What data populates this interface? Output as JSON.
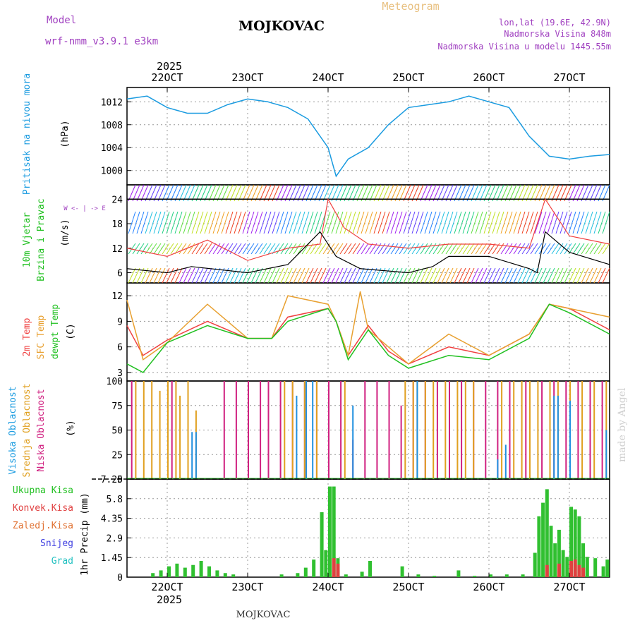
{
  "header": {
    "model_label": "Model",
    "model_name": "wrf-nmm_v3.9.1  e3km",
    "station": "MOJKOVAC",
    "chart_type": "Meteogram",
    "lonlat": "lon,lat (19.6E, 42.9N)",
    "elevation": "Nadmorska Visina 848m",
    "model_elevation": "Nadmorska Visina u modelu 1445.55m",
    "footer_station": "MOJKOVAC",
    "watermark": "made by Angel",
    "year": "2025"
  },
  "colors": {
    "pressure": "#1a9be0",
    "t2m": "#f04040",
    "tsfc": "#e8a030",
    "dewpt": "#20c020",
    "gust": "#000000",
    "precip_total": "#30c030",
    "precip_conv": "#e04040",
    "purple": "#a040c0",
    "low_cloud": "#d02080",
    "mid_cloud": "#e0a020",
    "high_cloud": "#2090e0"
  },
  "chart_data": [
    {
      "type": "line",
      "panel": "pressure",
      "ylabel": "Pritisak na nivou mora",
      "unit": "(hPa)",
      "yticks": [
        "1012",
        "1008",
        "1004",
        "1000"
      ],
      "ytick_values": [
        1012,
        1008,
        1004,
        1000
      ],
      "ylim": [
        997.5,
        1014.5
      ],
      "x_days": [
        21.5,
        21.75,
        22.0,
        22.25,
        22.5,
        22.75,
        23.0,
        23.25,
        23.5,
        23.75,
        24.0,
        24.1,
        24.25,
        24.5,
        24.75,
        25.0,
        25.25,
        25.5,
        25.75,
        26.0,
        26.25,
        26.5,
        26.75,
        27.0,
        27.25,
        27.5
      ],
      "values": [
        1012.5,
        1013.0,
        1011.0,
        1010.0,
        1010.0,
        1011.5,
        1012.5,
        1012.0,
        1011.0,
        1009.0,
        1004.0,
        999.0,
        1002.0,
        1004.0,
        1008.0,
        1011.0,
        1011.5,
        1012.0,
        1013.0,
        1012.0,
        1011.0,
        1006.0,
        1002.5,
        1002.0,
        1002.5,
        1002.8
      ]
    },
    {
      "type": "line",
      "panel": "wind",
      "ylabel_1": "10m Vjetar",
      "ylabel_2": "Brzina i Pravac",
      "unit": "(m/s)",
      "legend_symbols": "W <- | -> E",
      "yticks": [
        "24",
        "18",
        "12",
        "6"
      ],
      "ytick_values": [
        24,
        18,
        12,
        6
      ],
      "ylim": [
        3.5,
        27.5
      ],
      "series": [
        {
          "name": "wind speed",
          "x_days": [
            21.5,
            22.0,
            22.5,
            23.0,
            23.5,
            23.9,
            24.0,
            24.2,
            24.5,
            25.0,
            25.5,
            26.0,
            26.5,
            26.7,
            27.0,
            27.5
          ],
          "values": [
            12.0,
            10.0,
            14.0,
            9.0,
            12.0,
            13.0,
            24.0,
            17.0,
            13.0,
            12.0,
            13.0,
            13.0,
            12.0,
            24.0,
            15.0,
            13.0
          ]
        },
        {
          "name": "gust",
          "x_days": [
            21.5,
            22.0,
            22.3,
            23.0,
            23.5,
            23.9,
            24.1,
            24.4,
            25.0,
            25.3,
            25.5,
            26.0,
            26.5,
            26.6,
            26.7,
            27.0,
            27.5
          ],
          "values": [
            7.0,
            6.0,
            7.5,
            6.0,
            8.0,
            16.0,
            10.0,
            7.0,
            6.0,
            7.5,
            10.0,
            10.0,
            7.0,
            6.0,
            16.0,
            11.0,
            8.0
          ]
        }
      ]
    },
    {
      "type": "line",
      "panel": "temperature",
      "ylabel_1": "2m Temp",
      "ylabel_2": "SFC Temp",
      "ylabel_3": "dewpt Temp",
      "unit": "(C)",
      "yticks": [
        "12",
        "9",
        "6",
        "3"
      ],
      "ytick_values": [
        12,
        9,
        6,
        3
      ],
      "ylim": [
        2,
        13.5
      ],
      "series": [
        {
          "name": "2m Temp",
          "x_days": [
            21.5,
            21.7,
            22.0,
            22.5,
            23.0,
            23.3,
            23.5,
            24.0,
            24.1,
            24.25,
            24.5,
            24.75,
            25.0,
            25.5,
            26.0,
            26.5,
            26.75,
            27.0,
            27.5
          ],
          "values": [
            8.5,
            5.0,
            6.8,
            9.0,
            7.0,
            7.0,
            9.5,
            10.5,
            9.0,
            5.0,
            8.5,
            5.5,
            4.0,
            6.0,
            5.0,
            7.5,
            11.0,
            10.5,
            8.0
          ]
        },
        {
          "name": "SFC Temp",
          "x_days": [
            21.5,
            21.7,
            22.0,
            22.5,
            23.0,
            23.3,
            23.5,
            24.0,
            24.1,
            24.25,
            24.4,
            24.5,
            24.75,
            25.0,
            25.5,
            26.0,
            26.5,
            26.75,
            27.0,
            27.5
          ],
          "values": [
            11.5,
            4.5,
            6.5,
            11.0,
            7.0,
            7.0,
            12.0,
            11.0,
            9.0,
            5.0,
            12.5,
            8.0,
            6.0,
            4.0,
            7.5,
            5.0,
            7.5,
            11.0,
            10.5,
            9.5
          ]
        },
        {
          "name": "dewpt Temp",
          "x_days": [
            21.5,
            21.7,
            22.0,
            22.5,
            23.0,
            23.3,
            23.5,
            24.0,
            24.1,
            24.25,
            24.5,
            24.75,
            25.0,
            25.5,
            26.0,
            26.5,
            26.75,
            27.0,
            27.5
          ],
          "values": [
            4.0,
            3.0,
            6.5,
            8.5,
            7.0,
            7.0,
            9.0,
            10.5,
            9.0,
            4.5,
            8.0,
            5.0,
            3.5,
            5.0,
            4.5,
            7.0,
            11.0,
            10.0,
            7.5
          ]
        }
      ]
    },
    {
      "type": "bar",
      "panel": "cloud",
      "ylabel_1": "Visoka Oblacnost",
      "ylabel_2": "Srednja Oblacnost",
      "ylabel_3": "Niska Oblacnost",
      "unit": "(%)",
      "yticks": [
        "100",
        "75",
        "50",
        "25",
        "0"
      ],
      "ytick_values": [
        100,
        75,
        50,
        25,
        0
      ],
      "ylim": [
        0,
        100
      ],
      "series": [
        {
          "name": "Niska Oblacnost",
          "x_days": [
            21.55,
            22.05,
            22.7,
            22.85,
            23.0,
            23.15,
            23.25,
            23.4,
            23.55,
            23.7,
            23.85,
            24.0,
            24.15,
            24.3,
            24.45,
            24.6,
            24.75,
            24.9,
            25.05,
            25.2,
            25.35,
            25.5,
            25.65,
            25.8,
            25.95,
            26.1,
            26.25,
            26.45,
            26.65,
            26.8,
            26.95,
            27.1,
            27.25,
            27.4
          ],
          "values": [
            100,
            100,
            100,
            100,
            100,
            100,
            100,
            100,
            100,
            100,
            100,
            100,
            100,
            40,
            100,
            100,
            100,
            75,
            100,
            100,
            100,
            100,
            100,
            100,
            100,
            100,
            100,
            100,
            100,
            100,
            100,
            100,
            100,
            100
          ]
        },
        {
          "name": "Srednja Oblacnost",
          "x_days": [
            21.6,
            21.7,
            21.8,
            21.9,
            22.0,
            22.1,
            22.15,
            22.25,
            22.35,
            23.45,
            23.55,
            23.7,
            23.85,
            24.2,
            24.95,
            25.05,
            25.1,
            25.2,
            25.3,
            25.45,
            25.6,
            25.7,
            25.8,
            26.15,
            26.3,
            26.4,
            26.5,
            26.6,
            26.75,
            26.85,
            27.0,
            27.15,
            27.3,
            27.45
          ],
          "values": [
            100,
            100,
            100,
            90,
            100,
            100,
            85,
            100,
            70,
            100,
            100,
            100,
            100,
            100,
            100,
            100,
            100,
            100,
            100,
            100,
            100,
            100,
            100,
            100,
            100,
            100,
            100,
            100,
            100,
            100,
            100,
            100,
            100,
            100
          ]
        },
        {
          "name": "Visoka Oblacnost",
          "x_days": [
            22.3,
            22.35,
            23.6,
            23.72,
            23.8,
            24.3,
            25.1,
            26.1,
            26.2,
            26.8,
            26.85,
            27.0,
            27.45
          ],
          "values": [
            48,
            48,
            85,
            100,
            100,
            75,
            100,
            20,
            35,
            85,
            85,
            80,
            50
          ]
        }
      ]
    },
    {
      "type": "bar",
      "panel": "precipitation",
      "legend": [
        "Ukupna  Kisa",
        "Konvek.Kisa",
        "Zaledj.Kisa",
        "Snijeg",
        "Grad"
      ],
      "ylabel": "1hr Precip (mm)",
      "yticks": [
        "7.25",
        "5.8",
        "4.35",
        "2.9",
        "1.45",
        "0"
      ],
      "ytick_values": [
        7.25,
        5.8,
        4.35,
        2.9,
        1.45,
        0
      ],
      "ylim": [
        0,
        7.25
      ],
      "series": [
        {
          "name": "Ukupna Kisa",
          "x_days": [
            21.8,
            21.9,
            22.0,
            22.1,
            22.2,
            22.3,
            22.4,
            22.5,
            22.6,
            22.7,
            22.8,
            23.4,
            23.6,
            23.7,
            23.8,
            23.9,
            23.95,
            24.0,
            24.05,
            24.1,
            24.2,
            24.4,
            24.5,
            24.9,
            25.1,
            25.3,
            25.6,
            25.8,
            26.0,
            26.2,
            26.4,
            26.55,
            26.6,
            26.65,
            26.7,
            26.75,
            26.8,
            26.85,
            26.9,
            26.95,
            27.0,
            27.05,
            27.1,
            27.15,
            27.2,
            27.3,
            27.4,
            27.45
          ],
          "values": [
            0.3,
            0.5,
            0.8,
            1.0,
            0.7,
            0.9,
            1.2,
            0.8,
            0.5,
            0.3,
            0.2,
            0.2,
            0.3,
            0.7,
            1.3,
            4.8,
            2.0,
            6.7,
            6.7,
            1.4,
            0.2,
            0.4,
            1.2,
            0.8,
            0.2,
            0.1,
            0.5,
            0.1,
            0.2,
            0.2,
            0.2,
            1.8,
            4.5,
            5.5,
            6.5,
            3.8,
            2.5,
            3.5,
            2.0,
            1.5,
            5.2,
            5.0,
            4.5,
            2.5,
            1.5,
            1.4,
            0.8,
            1.3
          ]
        },
        {
          "name": "Konvek.Kisa",
          "x_days": [
            24.05,
            24.1,
            26.7,
            26.85,
            27.0,
            27.05,
            27.1,
            27.15
          ],
          "values": [
            1.4,
            1.0,
            0.9,
            1.0,
            1.2,
            1.3,
            0.9,
            0.7
          ]
        }
      ]
    },
    {
      "type": "axis",
      "panel": "time-axis",
      "day_labels": [
        "22OCT",
        "23OCT",
        "24OCT",
        "25OCT",
        "26OCT",
        "27OCT"
      ],
      "day_values": [
        22,
        23,
        24,
        25,
        26,
        27
      ],
      "xlim": [
        21.5,
        27.5
      ]
    }
  ]
}
